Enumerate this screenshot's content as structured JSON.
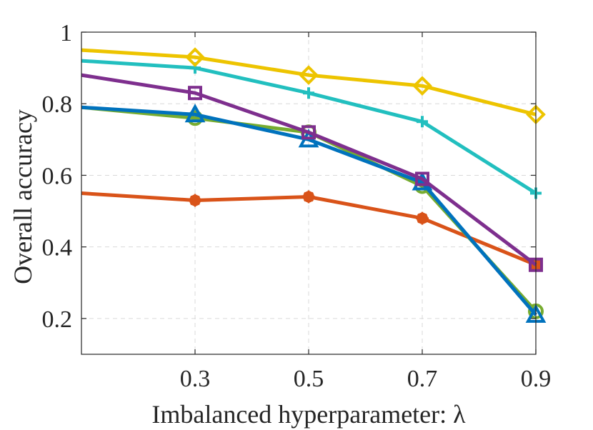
{
  "chart_data": {
    "type": "line",
    "title": "",
    "xlabel": "Imbalanced hyperparameter: λ",
    "ylabel": "Overall accuracy",
    "x": [
      0.1,
      0.3,
      0.5,
      0.7,
      0.9
    ],
    "xlim": [
      0.1,
      0.9
    ],
    "ylim": [
      0.1,
      1.0
    ],
    "xticks": [
      0.3,
      0.5,
      0.7,
      0.9
    ],
    "xtick_labels": [
      "0.3",
      "0.5",
      "0.7",
      "0.9"
    ],
    "yticks": [
      0.2,
      0.4,
      0.6,
      0.8,
      1.0
    ],
    "ytick_labels": [
      "0.2",
      "0.4",
      "0.6",
      "0.8",
      "1"
    ],
    "grid": true,
    "series": [
      {
        "name": "series-orange",
        "color": "#D95319",
        "marker": "asterisk",
        "values": [
          0.55,
          0.53,
          0.54,
          0.48,
          0.35
        ]
      },
      {
        "name": "series-green",
        "color": "#77AC30",
        "marker": "circle",
        "values": [
          0.79,
          0.76,
          0.72,
          0.57,
          0.22
        ]
      },
      {
        "name": "series-blue",
        "color": "#0072BD",
        "marker": "triangle",
        "values": [
          0.79,
          0.77,
          0.7,
          0.58,
          0.21
        ]
      },
      {
        "name": "series-purple",
        "color": "#7E2F8E",
        "marker": "square",
        "values": [
          0.88,
          0.83,
          0.72,
          0.59,
          0.35
        ]
      },
      {
        "name": "series-cyan",
        "color": "#22BFBF",
        "marker": "plus",
        "values": [
          0.92,
          0.9,
          0.83,
          0.75,
          0.55
        ]
      },
      {
        "name": "series-yellow",
        "color": "#EDC400",
        "marker": "diamond",
        "values": [
          0.95,
          0.93,
          0.88,
          0.85,
          0.77
        ]
      }
    ]
  }
}
